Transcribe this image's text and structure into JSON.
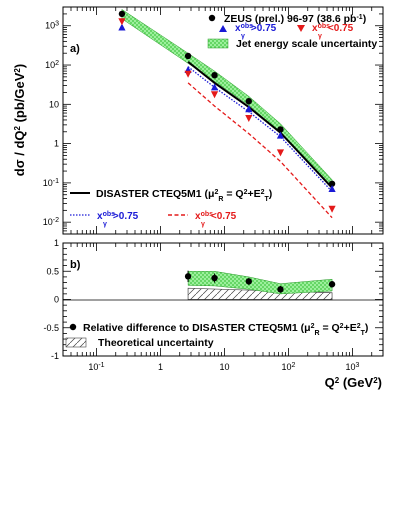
{
  "chart_data": [
    {
      "panel_label": "a)",
      "type": "line",
      "xlabel": "Q² (GeV²)",
      "ylabel": "dσ / dQ² (pb/GeV²)",
      "x_scale": "log",
      "y_scale": "log",
      "xlim": [
        0.03,
        3000
      ],
      "ylim": [
        0.005,
        3000
      ],
      "x_tick_labels": [
        "10^-1",
        "1",
        "10",
        "10^2",
        "10^3"
      ],
      "y_tick_labels": [
        "10^-2",
        "10^-1",
        "1",
        "10",
        "10^2",
        "10^3"
      ],
      "legend": {
        "data": "ZEUS (prel.) 96-97 (38.6 pb⁻¹)",
        "band": "Jet energy scale uncertainty",
        "theory": "DISASTER CTEQ5M1 (μ²R = Q²+E²T)",
        "xgt_label": "x^obs_γ >0.75",
        "xlt_label": "x^obs_γ <0.75"
      },
      "series": [
        {
          "name": "ZEUS (prel.) 96-97 (38.6 pb⁻¹)",
          "style": "points",
          "color": "#000000",
          "x": [
            0.25,
            2.7,
            7,
            24,
            75,
            480
          ],
          "y": [
            2000,
            170,
            55,
            12,
            2.3,
            0.095
          ]
        },
        {
          "name": "x^obs_γ >0.75",
          "style": "points",
          "color": "#1a1ad6",
          "marker": "triangle-up",
          "x": [
            0.25,
            2.7,
            7,
            24,
            75,
            480
          ],
          "y": [
            900,
            75,
            27,
            7.5,
            1.6,
            0.07
          ]
        },
        {
          "name": "x^obs_γ <0.75",
          "style": "points",
          "color": "#e41a1a",
          "marker": "triangle-down",
          "x": [
            0.25,
            2.7,
            7,
            24,
            75,
            480
          ],
          "y": [
            1300,
            60,
            18,
            4.5,
            0.6,
            0.022
          ]
        },
        {
          "name": "DISASTER CTEQ5M1 (μ²R = Q²+E²T)",
          "style": "line",
          "color": "#000000",
          "x": [
            2.7,
            7,
            24,
            75,
            480
          ],
          "y": [
            120,
            35,
            8.5,
            1.9,
            0.075
          ]
        },
        {
          "name": "x^obs_γ >0.75",
          "style": "dotted",
          "color": "#1a1ad6",
          "x": [
            2.7,
            7,
            24,
            75,
            480
          ],
          "y": [
            90,
            27,
            6.5,
            1.5,
            0.06
          ]
        },
        {
          "name": "x^obs_γ <0.75",
          "style": "dashed",
          "color": "#e41a1a",
          "x": [
            2.7,
            7,
            24,
            75,
            480
          ],
          "y": [
            35,
            9,
            1.8,
            0.35,
            0.013
          ]
        },
        {
          "name": "Jet energy scale uncertainty",
          "style": "band",
          "color": "#66dd66",
          "x": [
            0.25,
            2.7,
            7,
            24,
            75,
            480
          ],
          "y_low": [
            1500,
            110,
            38,
            9.5,
            1.9,
            0.075
          ],
          "y_high": [
            2600,
            200,
            70,
            16,
            3.2,
            0.12
          ]
        }
      ]
    },
    {
      "panel_label": "b)",
      "type": "scatter",
      "xlabel": "Q² (GeV²)",
      "x_scale": "log",
      "xlim": [
        0.03,
        3000
      ],
      "ylim": [
        -1,
        1
      ],
      "x_tick_labels": [
        "10^-1",
        "1",
        "10",
        "10^2",
        "10^3"
      ],
      "y_tick_labels": [
        "-1",
        "-0.5",
        "0",
        "0.5",
        "1"
      ],
      "legend": {
        "data": "Relative difference to DISASTER CTEQ5M1 (μ²R = Q²+E²T)",
        "hatch": "Theoretical uncertainty"
      },
      "series": [
        {
          "name": "Relative difference to DISASTER CTEQ5M1 (μ²R = Q²+E²T)",
          "style": "points",
          "color": "#000000",
          "x": [
            2.7,
            7,
            24,
            75,
            480
          ],
          "y": [
            0.41,
            0.38,
            0.32,
            0.18,
            0.27
          ],
          "err": [
            0.1,
            0.08,
            0.06,
            0.06,
            0.05
          ]
        },
        {
          "name": "Jet energy scale uncertainty",
          "style": "band",
          "color": "#66dd66",
          "x": [
            2.7,
            7,
            24,
            75,
            480
          ],
          "y_low": [
            0.25,
            0.24,
            0.18,
            0.1,
            0.15
          ],
          "y_high": [
            0.5,
            0.5,
            0.4,
            0.28,
            0.36
          ]
        },
        {
          "name": "Theoretical uncertainty",
          "style": "hatch",
          "color": "#555555",
          "x": [
            2.7,
            480
          ],
          "y_low": [
            0,
            0
          ],
          "y_high": [
            0.2,
            0.12
          ]
        }
      ]
    }
  ],
  "labels": {
    "ylabel_a": "dσ / dQ² (pb/GeV²)",
    "panel_a": "a)",
    "panel_b": "b)",
    "zeus": "ZEUS (prel.) 96-97 (38.6 pb⁻¹)",
    "band": "Jet energy scale uncertainty",
    "disaster": "DISASTER CTEQ5M1",
    "mu": "(μ²R = Q²+E²T)",
    "xgt": "x^obs_γ >0.75",
    "xlt": "x^obs_γ <0.75",
    "relative": "Relative difference to DISASTER CTEQ5M1",
    "theoretical": "Theoretical uncertainty",
    "xlabel": "Q² (GeV²)"
  }
}
